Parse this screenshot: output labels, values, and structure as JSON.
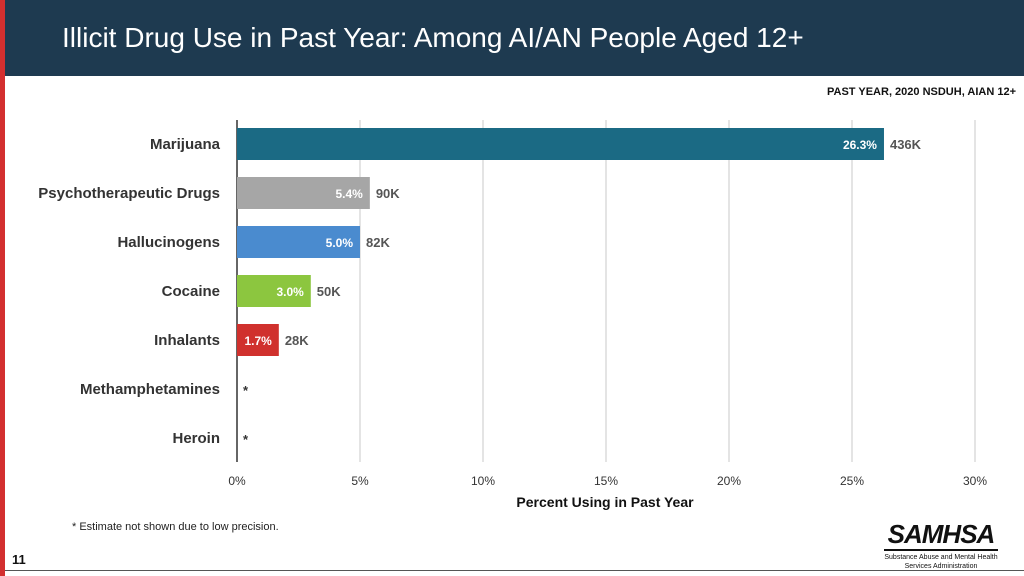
{
  "title": "Illicit Drug Use in Past Year: Among AI/AN People Aged 12+",
  "subtitle": "PAST YEAR, 2020 NSDUH, AIAN 12+",
  "footnote": "* Estimate not shown due to low precision.",
  "page_number": "11",
  "logo": {
    "name": "SAMHSA",
    "tagline_line1": "Substance Abuse and Mental Health",
    "tagline_line2": "Services Administration"
  },
  "chart_data": {
    "type": "bar",
    "orientation": "horizontal",
    "categories": [
      "Marijuana",
      "Psychotherapeutic Drugs",
      "Hallucinogens",
      "Cocaine",
      "Inhalants",
      "Methamphetamines",
      "Heroin"
    ],
    "values": [
      26.3,
      5.4,
      5.0,
      3.0,
      1.7,
      null,
      null
    ],
    "value_labels": [
      "26.3%",
      "5.4%",
      "5.0%",
      "3.0%",
      "1.7%",
      "",
      ""
    ],
    "count_labels": [
      "436K",
      "90K",
      "82K",
      "50K",
      "28K",
      "*",
      "*"
    ],
    "colors": [
      "#1b6a84",
      "#a6a6a6",
      "#4a8bcf",
      "#8cc63f",
      "#d0312d",
      "#1b6a84",
      "#1b6a84"
    ],
    "xlabel": "Percent Using in Past Year",
    "xlim": [
      0,
      30
    ],
    "xticks": [
      0,
      5,
      10,
      15,
      20,
      25,
      30
    ],
    "xtick_labels": [
      "0%",
      "5%",
      "10%",
      "15%",
      "20%",
      "25%",
      "30%"
    ],
    "grid": true
  }
}
